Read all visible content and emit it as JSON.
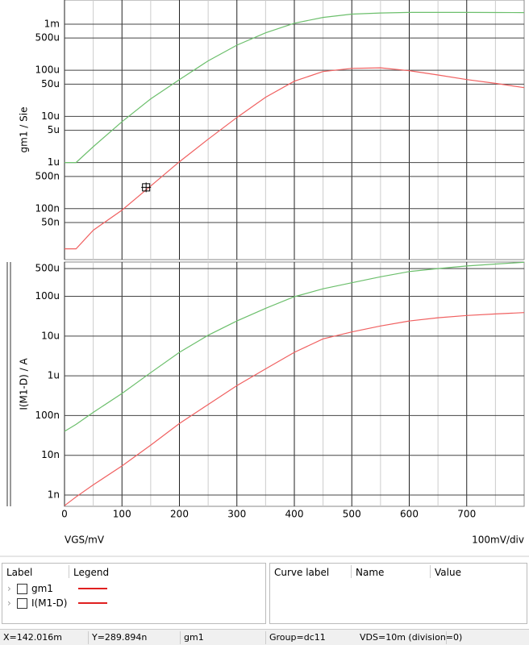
{
  "chart_data": [
    {
      "type": "line",
      "y_label": "gm1 / Sie",
      "log_y": true,
      "grid": true,
      "xlim": [
        0,
        800
      ],
      "xticks": [
        0,
        100,
        200,
        300,
        400,
        500,
        600,
        700
      ],
      "ylim": [
        7.86e-09,
        0.00334
      ],
      "yticks": [
        {
          "value": 0.001,
          "label": "1m"
        },
        {
          "value": 0.0005,
          "label": "500u"
        },
        {
          "value": 0.0001,
          "label": "100u"
        },
        {
          "value": 5e-05,
          "label": "50u"
        },
        {
          "value": 1e-05,
          "label": "10u"
        },
        {
          "value": 5e-06,
          "label": "5u"
        },
        {
          "value": 1e-06,
          "label": "1u"
        },
        {
          "value": 5e-07,
          "label": "500n"
        },
        {
          "value": 1e-07,
          "label": "100n"
        },
        {
          "value": 5e-08,
          "label": "50n"
        }
      ],
      "x": [
        0,
        20,
        50,
        100,
        150,
        200,
        250,
        300,
        350,
        400,
        450,
        500,
        550,
        600,
        650,
        700,
        750,
        800
      ],
      "series": [
        {
          "color": "#6cbf6c",
          "values": [
            1e-06,
            1e-06,
            2.2e-06,
            7.7e-06,
            2.4e-05,
            6.3e-05,
            0.00016,
            0.00035,
            0.00065,
            0.00105,
            0.0014,
            0.00165,
            0.00175,
            0.0018,
            0.0018,
            0.0018,
            0.00179,
            0.00178
          ]
        },
        {
          "color": "#f06060",
          "values": [
            1.35e-08,
            1.35e-08,
            3.4e-08,
            9.3e-08,
            3.1e-07,
            1.04e-06,
            3.2e-06,
            9.5e-06,
            2.6e-05,
            5.8e-05,
            9.4e-05,
            0.00011,
            0.000113,
            9.8e-05,
            7.9e-05,
            6.3e-05,
            5.2e-05,
            4.2e-05
          ]
        }
      ],
      "cursor": {
        "x": 142.016,
        "y": 2.89894e-07
      }
    },
    {
      "type": "line",
      "y_label": "I(M1-D) / A",
      "x_label": "VGS/mV",
      "x_scale_label": "100mV/div",
      "log_y": true,
      "grid": true,
      "xlim": [
        0,
        800
      ],
      "xticks": [
        0,
        100,
        200,
        300,
        400,
        500,
        600,
        700
      ],
      "ylim": [
        5.2e-10,
        0.00073
      ],
      "yticks": [
        {
          "value": 0.0005,
          "label": "500u"
        },
        {
          "value": 0.0001,
          "label": "100u"
        },
        {
          "value": 1e-05,
          "label": "10u"
        },
        {
          "value": 1e-06,
          "label": "1u"
        },
        {
          "value": 1e-07,
          "label": "100n"
        },
        {
          "value": 1e-08,
          "label": "10n"
        },
        {
          "value": 1e-09,
          "label": "1n"
        }
      ],
      "x": [
        0,
        20,
        50,
        100,
        150,
        200,
        250,
        300,
        350,
        400,
        450,
        500,
        550,
        600,
        650,
        700,
        750,
        800
      ],
      "series": [
        {
          "color": "#6cbf6c",
          "values": [
            4e-08,
            6e-08,
            1.2e-07,
            3.6e-07,
            1.2e-06,
            3.9e-06,
            1.05e-05,
            2.4e-05,
            5e-05,
            9.8e-05,
            0.000155,
            0.00022,
            0.00031,
            0.00042,
            0.0005,
            0.00058,
            0.00065,
            0.00072
          ]
        },
        {
          "color": "#f06060",
          "values": [
            5.4e-10,
            9e-10,
            1.8e-09,
            5.4e-09,
            1.8e-08,
            6.3e-08,
            1.9e-07,
            5.7e-07,
            1.5e-06,
            3.9e-06,
            8.5e-06,
            1.27e-05,
            1.8e-05,
            2.4e-05,
            2.9e-05,
            3.3e-05,
            3.6e-05,
            3.9e-05
          ]
        }
      ]
    }
  ],
  "legend_panel": {
    "headers": [
      "Label",
      "Legend"
    ],
    "rows": [
      {
        "label": "gm1",
        "color": "#e02020"
      },
      {
        "label": "I(M1-D)",
        "color": "#e02020"
      }
    ]
  },
  "curve_panel": {
    "headers": [
      "Curve label",
      "Name",
      "Value"
    ]
  },
  "status_bar": [
    "X=142.016m",
    "Y=289.894n",
    "gm1",
    "Group=dc11",
    "VDS=10m (division=0)"
  ]
}
